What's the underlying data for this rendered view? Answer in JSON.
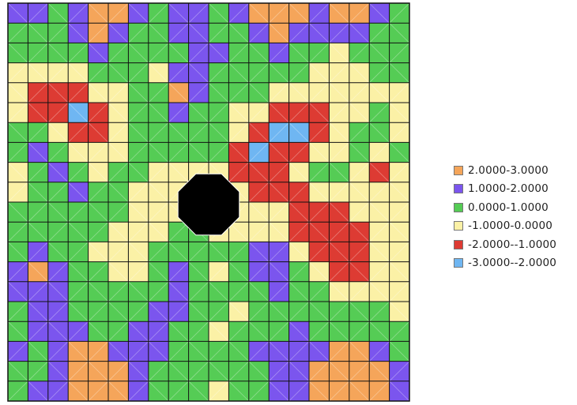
{
  "chart_data": {
    "type": "heatmap",
    "title": "",
    "xlabel": "",
    "ylabel": "",
    "grid": true,
    "grid_size": [
      20,
      20
    ],
    "obstacle": {
      "shape": "octagon",
      "color": "#000000"
    },
    "legend_position": "right",
    "levels": [
      {
        "label": "2.0000-3.0000",
        "range": [
          2,
          3
        ],
        "color": "#F5A55A"
      },
      {
        "label": "1.0000-2.0000",
        "range": [
          1,
          2
        ],
        "color": "#7B55EE"
      },
      {
        "label": "0.0000-1.0000",
        "range": [
          0,
          1
        ],
        "color": "#55CC55"
      },
      {
        "label": "-1.0000-0.0000",
        "range": [
          -1,
          0
        ],
        "color": "#FBF1A6"
      },
      {
        "label": "-2.0000--1.0000",
        "range": [
          -2,
          -1
        ],
        "color": "#DD3B33"
      },
      {
        "label": "-3.0000--2.0000",
        "range": [
          -3,
          -2
        ],
        "color": "#6FB6F2"
      }
    ],
    "z": [
      [
        1.2,
        1.8,
        0.5,
        1.4,
        2.6,
        2.4,
        1.3,
        0.6,
        1.5,
        1.3,
        0.6,
        1.2,
        2.3,
        2.6,
        2.5,
        1.8,
        2.4,
        2.6,
        1.3,
        0.4
      ],
      [
        0.4,
        0.5,
        0.6,
        1.3,
        2.4,
        1.6,
        0.8,
        0.4,
        1.3,
        1.4,
        0.5,
        0.8,
        1.5,
        2.3,
        1.8,
        1.3,
        1.5,
        1.4,
        0.6,
        0.3
      ],
      [
        0.3,
        0.4,
        0.5,
        0.6,
        1.6,
        0.6,
        0.3,
        0.5,
        0.6,
        1.3,
        1.2,
        0.4,
        0.5,
        1.3,
        0.5,
        0.4,
        -0.4,
        0.4,
        0.3,
        0.2
      ],
      [
        -0.2,
        -0.4,
        -0.6,
        -0.5,
        0.2,
        0.3,
        0.4,
        -0.2,
        1.3,
        1.4,
        0.5,
        0.6,
        0.3,
        0.4,
        0.2,
        -0.4,
        -0.3,
        -0.5,
        0.3,
        0.1
      ],
      [
        -0.6,
        -1.4,
        -1.6,
        -1.2,
        -0.6,
        -0.2,
        0.3,
        0.5,
        2.4,
        1.5,
        0.6,
        0.5,
        0.2,
        -0.3,
        -0.5,
        -0.6,
        -0.4,
        -0.3,
        -0.2,
        -0.5
      ],
      [
        -0.6,
        -1.4,
        -1.5,
        -2.5,
        -1.5,
        -0.6,
        0.3,
        0.6,
        1.4,
        0.6,
        0.4,
        -0.3,
        -0.6,
        -1.3,
        -1.4,
        -1.2,
        -0.5,
        -0.2,
        0.3,
        -0.3
      ],
      [
        0.5,
        0.6,
        -0.8,
        -1.4,
        -1.3,
        -0.5,
        0.4,
        0.5,
        0.5,
        0.4,
        0.2,
        -0.5,
        -1.4,
        -2.4,
        -2.3,
        -1.2,
        -0.4,
        0.3,
        0.4,
        -0.2
      ],
      [
        0.4,
        1.3,
        0.5,
        -0.6,
        -0.5,
        -0.3,
        0.5,
        0.3,
        0.6,
        0.5,
        0.3,
        -1.3,
        -2.5,
        -1.5,
        -1.4,
        -0.6,
        -0.2,
        0.5,
        -0.5,
        0.2
      ],
      [
        -0.3,
        0.4,
        1.2,
        0.6,
        -0.4,
        0.5,
        0.6,
        -0.6,
        -0.8,
        -0.7,
        -0.3,
        -1.4,
        -1.5,
        -1.3,
        -0.5,
        0.4,
        0.3,
        -0.6,
        -1.2,
        -0.4
      ],
      [
        -0.2,
        0.3,
        0.5,
        1.4,
        0.6,
        0.4,
        -0.6,
        -0.8,
        -0.8,
        -0.7,
        -0.3,
        -0.5,
        -1.4,
        -1.5,
        -1.2,
        -0.6,
        -0.3,
        -0.5,
        -0.4,
        -0.2
      ],
      [
        0.3,
        0.4,
        0.6,
        0.5,
        0.5,
        0.3,
        -0.4,
        -0.7,
        -0.8,
        -0.6,
        -0.2,
        -0.6,
        -0.5,
        -0.6,
        -1.4,
        -1.3,
        -1.2,
        -0.6,
        -0.3,
        -0.2
      ],
      [
        0.4,
        0.3,
        0.5,
        0.4,
        0.3,
        -0.4,
        -0.6,
        -0.5,
        0.3,
        0.4,
        -0.3,
        -0.4,
        -0.6,
        -0.5,
        -1.3,
        -1.5,
        -1.6,
        -1.2,
        -0.4,
        -0.3
      ],
      [
        0.5,
        1.4,
        0.6,
        0.4,
        -0.3,
        -0.6,
        -0.5,
        0.3,
        0.5,
        0.4,
        0.3,
        0.2,
        1.4,
        1.3,
        -0.5,
        -1.4,
        -1.6,
        -1.4,
        -0.6,
        -0.3
      ],
      [
        1.3,
        2.4,
        1.2,
        0.5,
        0.4,
        -0.5,
        -0.4,
        0.5,
        1.3,
        0.4,
        -0.3,
        0.3,
        1.5,
        1.4,
        0.4,
        -0.5,
        -1.4,
        -1.5,
        -0.5,
        -0.2
      ],
      [
        1.4,
        1.5,
        1.3,
        0.6,
        0.5,
        0.3,
        0.4,
        0.6,
        1.4,
        0.5,
        0.2,
        0.4,
        0.6,
        1.3,
        0.5,
        0.2,
        -0.6,
        -0.5,
        -0.4,
        -0.3
      ],
      [
        0.4,
        1.3,
        1.4,
        0.5,
        0.4,
        0.5,
        0.6,
        1.3,
        1.5,
        0.4,
        0.3,
        -0.4,
        0.3,
        0.4,
        0.5,
        0.4,
        0.3,
        0.4,
        0.2,
        -0.2
      ],
      [
        0.5,
        1.2,
        1.5,
        1.3,
        0.6,
        0.5,
        1.2,
        1.4,
        0.6,
        0.5,
        -0.3,
        0.4,
        0.5,
        0.6,
        1.3,
        0.5,
        0.4,
        0.3,
        0.2,
        0.3
      ],
      [
        1.3,
        0.5,
        1.4,
        2.3,
        2.5,
        1.6,
        1.5,
        1.3,
        0.5,
        0.4,
        0.3,
        0.5,
        1.3,
        1.5,
        1.4,
        1.3,
        2.3,
        2.4,
        1.5,
        0.5
      ],
      [
        0.4,
        0.5,
        1.3,
        2.4,
        2.6,
        2.5,
        1.4,
        0.6,
        0.5,
        0.6,
        0.4,
        0.6,
        0.5,
        1.4,
        1.5,
        2.5,
        2.6,
        2.7,
        2.4,
        1.3
      ],
      [
        0.6,
        1.3,
        1.5,
        2.3,
        2.5,
        2.4,
        1.3,
        0.5,
        0.6,
        0.4,
        -0.3,
        0.5,
        0.6,
        1.3,
        1.4,
        2.4,
        2.5,
        2.6,
        2.3,
        1.4
      ]
    ]
  }
}
